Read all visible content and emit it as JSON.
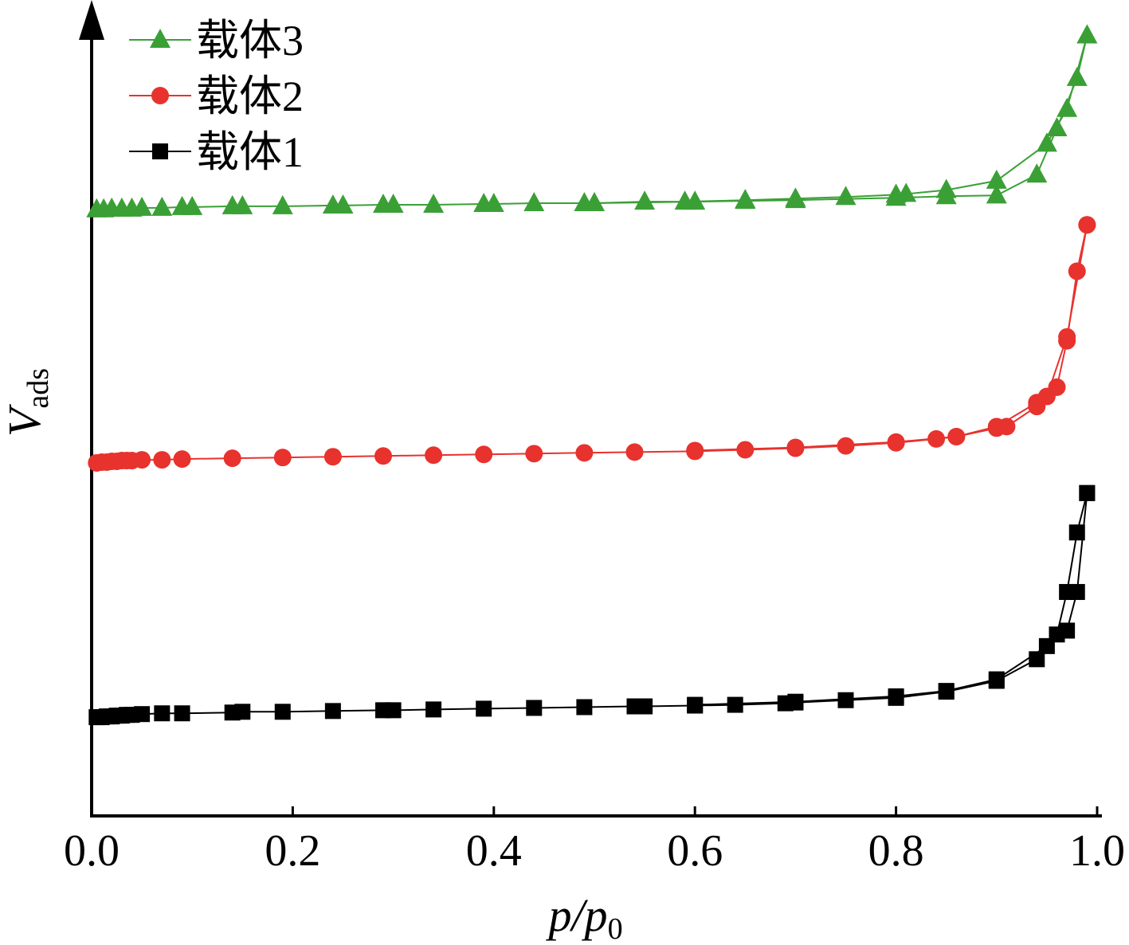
{
  "chart_data": {
    "type": "line",
    "xlabel": "p/p",
    "xlabel_subscript": "0",
    "ylabel": "V",
    "ylabel_subscript": "ads",
    "xlim": [
      0.0,
      1.0
    ],
    "xticks": [
      "0.0",
      "0.2",
      "0.4",
      "0.6",
      "0.8",
      "1.0"
    ],
    "y_units_note": "",
    "ylim": [
      0,
      100
    ],
    "legend_position": "top-left",
    "grid": false,
    "series": [
      {
        "name": "载体3",
        "color": "#3aa036",
        "marker": "triangle",
        "adsorption": {
          "x": [
            0.005,
            0.012,
            0.02,
            0.03,
            0.04,
            0.05,
            0.07,
            0.09,
            0.1,
            0.14,
            0.15,
            0.19,
            0.24,
            0.25,
            0.29,
            0.3,
            0.34,
            0.39,
            0.4,
            0.44,
            0.49,
            0.5,
            0.55,
            0.59,
            0.65,
            0.7,
            0.75,
            0.8,
            0.81,
            0.85,
            0.9,
            0.95,
            0.97,
            0.99
          ],
          "y": [
            76.0,
            76.0,
            76.1,
            76.1,
            76.1,
            76.2,
            76.2,
            76.3,
            76.3,
            76.4,
            76.4,
            76.4,
            76.5,
            76.5,
            76.6,
            76.6,
            76.6,
            76.7,
            76.7,
            76.8,
            76.8,
            76.8,
            77.0,
            77.0,
            77.2,
            77.4,
            77.6,
            77.9,
            78.0,
            78.5,
            79.7,
            84.5,
            89.0,
            98.5
          ]
        },
        "desorption": {
          "x": [
            0.99,
            0.98,
            0.96,
            0.94,
            0.9,
            0.85,
            0.8,
            0.7,
            0.65,
            0.6,
            0.5
          ],
          "y": [
            98.5,
            93.0,
            86.5,
            80.5,
            77.8,
            77.7,
            77.5,
            77.2,
            77.1,
            77.0,
            76.8
          ]
        }
      },
      {
        "name": "载体2",
        "color": "#e8322d",
        "marker": "circle",
        "adsorption": {
          "x": [
            0.005,
            0.01,
            0.015,
            0.02,
            0.025,
            0.03,
            0.035,
            0.04,
            0.05,
            0.07,
            0.09,
            0.14,
            0.19,
            0.24,
            0.29,
            0.34,
            0.39,
            0.44,
            0.49,
            0.54,
            0.6,
            0.65,
            0.7,
            0.75,
            0.8,
            0.84,
            0.86,
            0.9,
            0.94,
            0.95,
            0.97,
            0.99
          ],
          "y": [
            43.2,
            43.3,
            43.3,
            43.4,
            43.4,
            43.5,
            43.5,
            43.5,
            43.6,
            43.6,
            43.7,
            43.8,
            43.9,
            44.0,
            44.1,
            44.2,
            44.3,
            44.4,
            44.5,
            44.6,
            44.7,
            44.9,
            45.1,
            45.4,
            45.8,
            46.3,
            46.6,
            47.9,
            51.0,
            51.8,
            59.5,
            74.0
          ]
        },
        "desorption": {
          "x": [
            0.99,
            0.98,
            0.97,
            0.96,
            0.94,
            0.91,
            0.9,
            0.86,
            0.8,
            0.7,
            0.6
          ],
          "y": [
            74.0,
            68.0,
            59.0,
            53.0,
            50.5,
            47.9,
            47.7,
            46.6,
            45.9,
            45.2,
            44.8
          ]
        }
      },
      {
        "name": "载体1",
        "color": "#000000",
        "marker": "square",
        "adsorption": {
          "x": [
            0.005,
            0.01,
            0.015,
            0.02,
            0.025,
            0.03,
            0.035,
            0.04,
            0.05,
            0.07,
            0.09,
            0.14,
            0.15,
            0.19,
            0.24,
            0.29,
            0.3,
            0.34,
            0.39,
            0.44,
            0.49,
            0.54,
            0.55,
            0.6,
            0.64,
            0.69,
            0.7,
            0.75,
            0.8,
            0.85,
            0.9,
            0.94,
            0.96,
            0.97,
            0.98,
            0.99
          ],
          "y": [
            10.3,
            10.3,
            10.4,
            10.4,
            10.5,
            10.5,
            10.6,
            10.6,
            10.7,
            10.8,
            10.8,
            10.9,
            11.0,
            11.0,
            11.1,
            11.2,
            11.2,
            11.3,
            11.4,
            11.5,
            11.6,
            11.7,
            11.7,
            11.8,
            11.9,
            12.1,
            12.2,
            12.5,
            12.8,
            13.6,
            15.0,
            17.8,
            21.0,
            26.5,
            34.2,
            39.3
          ]
        },
        "desorption": {
          "x": [
            0.99,
            0.98,
            0.97,
            0.95,
            0.9,
            0.85,
            0.8,
            0.7,
            0.6
          ],
          "y": [
            39.3,
            26.5,
            21.5,
            19.5,
            15.2,
            13.7,
            13.0,
            12.3,
            11.9
          ]
        }
      }
    ]
  }
}
